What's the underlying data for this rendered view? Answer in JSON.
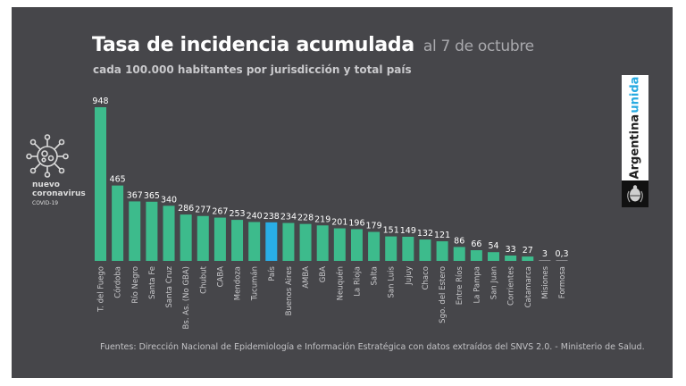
{
  "header": {
    "title": "Tasa de incidencia acumulada",
    "date": "al 7 de octubre",
    "subtitle": "cada 100.000 habitantes por jurisdicción y total país"
  },
  "badge": {
    "icon": "virus-icon",
    "line1": "nuevo",
    "line2": "coronavirus",
    "line3": "COVID-19"
  },
  "brand": {
    "text_main": "Argentina",
    "text_accent": "unida",
    "icon": "coat-of-arms-icon",
    "accent_color": "#27aae1"
  },
  "footer": {
    "source": "Fuentes: Dirección Nacional de Epidemiología e Información Estratégica con datos extraídos del SNVS 2.0. - Ministerio de Salud."
  },
  "colors": {
    "background": "#46464a",
    "bar": "#3dbb8c",
    "highlight_bar": "#29aee6"
  },
  "chart_data": {
    "type": "bar",
    "title": "Tasa de incidencia acumulada al 7 de octubre",
    "subtitle": "cada 100.000 habitantes por jurisdicción y total país",
    "xlabel": "",
    "ylabel": "",
    "ylim": [
      0,
      948
    ],
    "grid": false,
    "legend": "none",
    "highlight": "País",
    "categories": [
      "T. del Fuego",
      "Córdoba",
      "Río Negro",
      "Santa Fe",
      "Santa Cruz",
      "Bs. As. (No GBA)",
      "Chubut",
      "CABA",
      "Mendoza",
      "Tucumán",
      "País",
      "Buenos Aires",
      "AMBA",
      "GBA",
      "Neuquén",
      "La Rioja",
      "Salta",
      "San Luis",
      "Jujuy",
      "Chaco",
      "Sgo. del Estero",
      "Entre Ríos",
      "La Pampa",
      "San Juan",
      "Corrientes",
      "Catamarca",
      "Misiones",
      "Formosa"
    ],
    "values": [
      948,
      465,
      367,
      365,
      340,
      286,
      277,
      267,
      253,
      240,
      238,
      234,
      228,
      219,
      201,
      196,
      179,
      151,
      149,
      132,
      121,
      86,
      66,
      54,
      33,
      27,
      3,
      0.3
    ],
    "value_labels": [
      "948",
      "465",
      "367",
      "365",
      "340",
      "286",
      "277",
      "267",
      "253",
      "240",
      "238",
      "234",
      "228",
      "219",
      "201",
      "196",
      "179",
      "151",
      "149",
      "132",
      "121",
      "86",
      "66",
      "54",
      "33",
      "27",
      "3",
      "0,3"
    ]
  }
}
